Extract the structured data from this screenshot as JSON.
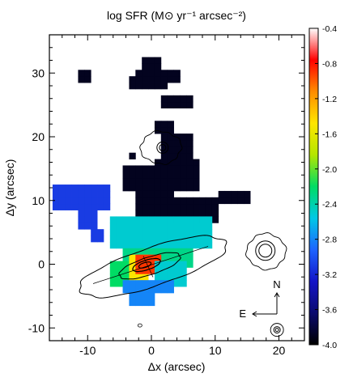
{
  "chart_data": {
    "type": "heatmap",
    "title": "log SFR (M⊙ yr⁻¹ arcsec⁻²)",
    "xlabel": "Δx (arcsec)",
    "ylabel": "Δy (arcsec)",
    "xlim": [
      -16,
      24
    ],
    "ylim": [
      -12,
      36
    ],
    "x_ticks": [
      -10,
      0,
      10,
      20
    ],
    "y_ticks": [
      -10,
      0,
      10,
      20,
      30
    ],
    "x_tick_labels": [
      "-10",
      "0",
      "10",
      "20"
    ],
    "y_tick_labels": [
      "-10",
      "0",
      "10",
      "20",
      "30"
    ],
    "colorbar": {
      "range": [
        -4.0,
        -0.4
      ],
      "ticks": [
        -0.4,
        -0.8,
        -1.2,
        -1.6,
        -2.0,
        -2.4,
        -2.8,
        -3.2,
        -3.6,
        -4.0
      ],
      "tick_labels": [
        "-0.4",
        "-0.8",
        "-1.2",
        "-1.6",
        "-2.0",
        "-2.4",
        "-2.8",
        "-3.2",
        "-3.6",
        "-4.0"
      ],
      "colormap": [
        "#000000",
        "#0a0a6e",
        "#1414c8",
        "#1e64ff",
        "#00c8e6",
        "#00dc64",
        "#b4e600",
        "#ffe600",
        "#ff8c00",
        "#ff0000",
        "#ffffff"
      ]
    },
    "pixel_size": 1,
    "regions": [
      {
        "x": [
          -11,
          -10
        ],
        "y": [
          29,
          30
        ],
        "value": -3.9
      },
      {
        "x": [
          -1,
          1
        ],
        "y": [
          31,
          32
        ],
        "value": -3.9
      },
      {
        "x": [
          -2,
          2
        ],
        "y": [
          28,
          30
        ],
        "value": -3.9
      },
      {
        "x": [
          3,
          4
        ],
        "y": [
          29,
          30
        ],
        "value": -3.9
      },
      {
        "x": [
          -3,
          -3
        ],
        "y": [
          28,
          29
        ],
        "value": -3.9
      },
      {
        "x": [
          2,
          6
        ],
        "y": [
          25,
          26
        ],
        "value": -3.9
      },
      {
        "x": [
          1,
          3
        ],
        "y": [
          21,
          22
        ],
        "value": -3.9
      },
      {
        "x": [
          2,
          6
        ],
        "y": [
          17,
          20
        ],
        "value": -3.9
      },
      {
        "x": [
          -3,
          -3
        ],
        "y": [
          17,
          17
        ],
        "value": -3.9
      },
      {
        "x": [
          -4,
          0
        ],
        "y": [
          12,
          15
        ],
        "value": -3.9
      },
      {
        "x": [
          1,
          7
        ],
        "y": [
          12,
          16
        ],
        "value": -3.9
      },
      {
        "x": [
          -2,
          3
        ],
        "y": [
          8,
          11
        ],
        "value": -3.9
      },
      {
        "x": [
          4,
          10
        ],
        "y": [
          7,
          10
        ],
        "value": -3.9
      },
      {
        "x": [
          11,
          15
        ],
        "y": [
          10,
          11
        ],
        "value": -3.9
      },
      {
        "x": [
          -15,
          -7
        ],
        "y": [
          9,
          12
        ],
        "value": -3.1
      },
      {
        "x": [
          -11,
          -9
        ],
        "y": [
          6,
          8
        ],
        "value": -3.1
      },
      {
        "x": [
          -9,
          -8
        ],
        "y": [
          4,
          5
        ],
        "value": -3.1
      },
      {
        "x": [
          -6,
          9
        ],
        "y": [
          3,
          7
        ],
        "value": -2.5
      },
      {
        "x": [
          -4,
          6
        ],
        "y": [
          0,
          2
        ],
        "value": -2.3
      },
      {
        "x": [
          -6,
          -4
        ],
        "y": [
          -3,
          0
        ],
        "value": -2.2
      },
      {
        "x": [
          -3,
          -1
        ],
        "y": [
          -2,
          1
        ],
        "value": -1.5
      },
      {
        "x": [
          -2,
          1
        ],
        "y": [
          -1,
          1
        ],
        "value": -0.9
      },
      {
        "x": [
          1,
          5
        ],
        "y": [
          -3,
          0
        ],
        "value": -2.5
      },
      {
        "x": [
          -4,
          3
        ],
        "y": [
          -4,
          -3
        ],
        "value": -2.8
      },
      {
        "x": [
          -3,
          0
        ],
        "y": [
          -6,
          -5
        ],
        "value": -2.8
      }
    ]
  }
}
